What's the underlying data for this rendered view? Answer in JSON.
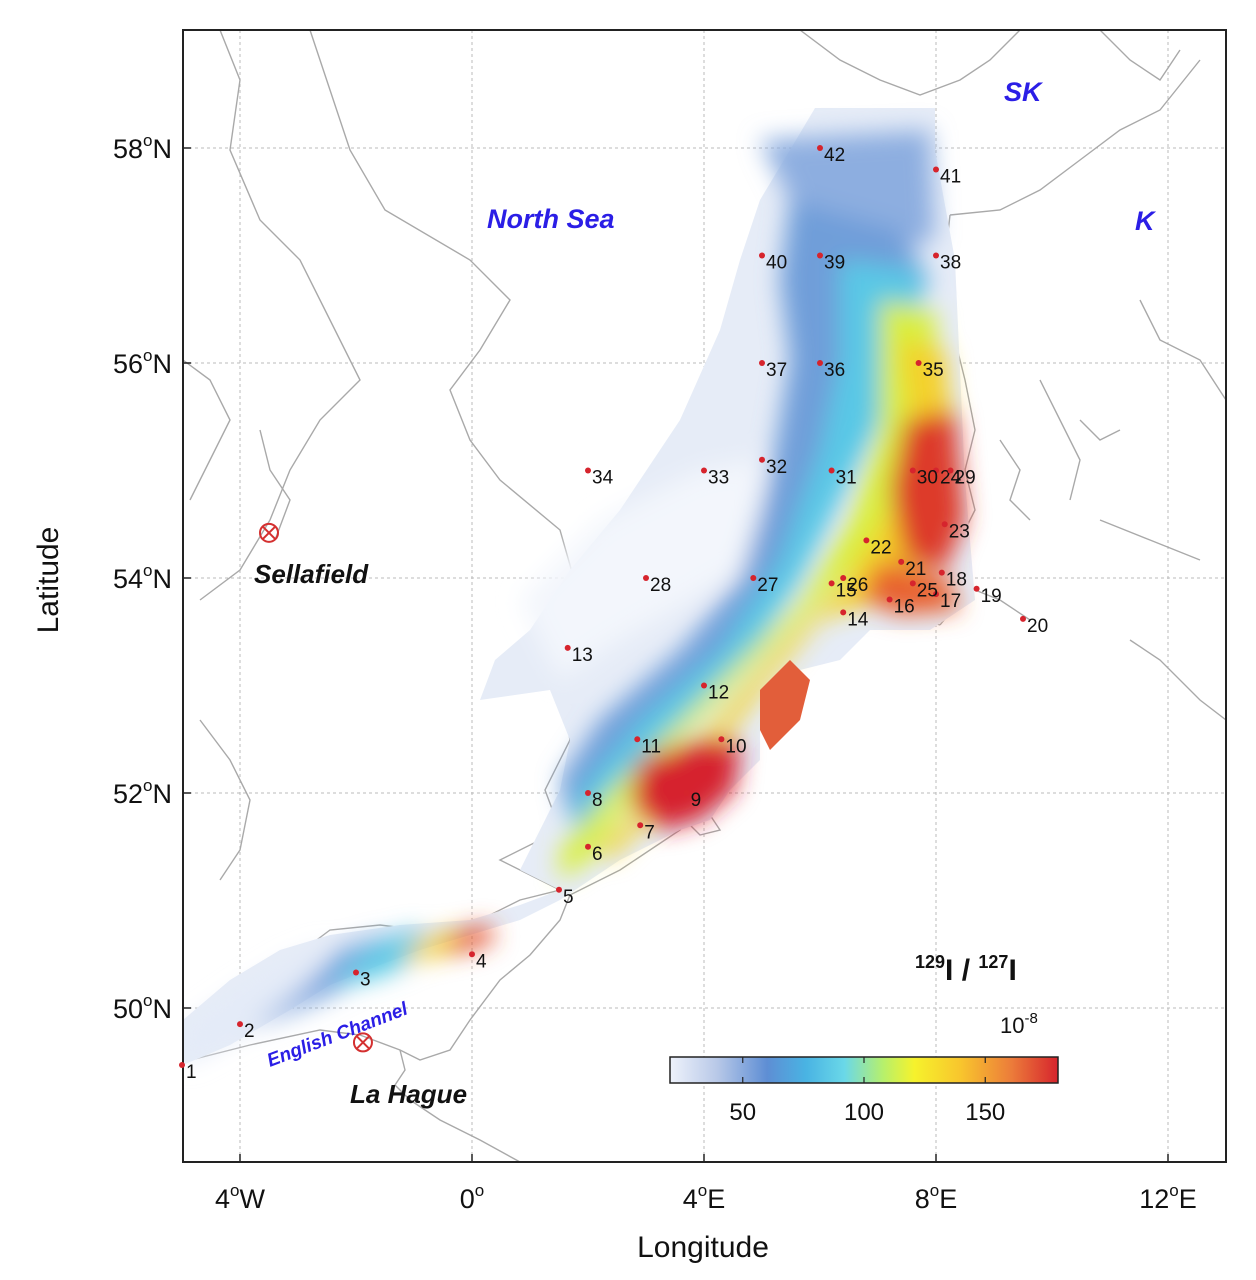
{
  "axes": {
    "xlabel": "Longitude",
    "ylabel": "Latitude",
    "x_ticks": [
      {
        "value": -4,
        "deg": "4",
        "sup": "o",
        "hemi": "W"
      },
      {
        "value": 0,
        "deg": "0",
        "sup": "o",
        "hemi": ""
      },
      {
        "value": 4,
        "deg": "4",
        "sup": "o",
        "hemi": "E"
      },
      {
        "value": 8,
        "deg": "8",
        "sup": "o",
        "hemi": "E"
      },
      {
        "value": 12,
        "deg": "12",
        "sup": "o",
        "hemi": "E"
      }
    ],
    "y_ticks": [
      {
        "value": 50,
        "deg": "50",
        "sup": "o",
        "hemi": "N"
      },
      {
        "value": 52,
        "deg": "52",
        "sup": "o",
        "hemi": "N"
      },
      {
        "value": 54,
        "deg": "54",
        "sup": "o",
        "hemi": "N"
      },
      {
        "value": 56,
        "deg": "56",
        "sup": "o",
        "hemi": "N"
      },
      {
        "value": 58,
        "deg": "58",
        "sup": "o",
        "hemi": "N"
      }
    ],
    "xlim": [
      -5,
      13
    ],
    "ylim": [
      48.7,
      58.55
    ],
    "grid": true
  },
  "labels": {
    "north_sea": "North Sea",
    "sk": "SK",
    "k": "K",
    "english_channel": "English Channel",
    "sellafield": "Sellafield",
    "la_hague": "La Hague"
  },
  "sources": [
    {
      "name": "Sellafield",
      "lon": -3.5,
      "lat": 54.42
    },
    {
      "name": "La Hague",
      "lon": -1.88,
      "lat": 49.68
    }
  ],
  "stations": [
    {
      "id": "1",
      "lon": -5.0,
      "lat": 49.47
    },
    {
      "id": "2",
      "lon": -4.0,
      "lat": 49.85
    },
    {
      "id": "3",
      "lon": -2.0,
      "lat": 50.33
    },
    {
      "id": "4",
      "lon": 0.0,
      "lat": 50.5
    },
    {
      "id": "5",
      "lon": 1.5,
      "lat": 51.1
    },
    {
      "id": "6",
      "lon": 2.0,
      "lat": 51.5
    },
    {
      "id": "7",
      "lon": 2.9,
      "lat": 51.7
    },
    {
      "id": "8",
      "lon": 2.0,
      "lat": 52.0
    },
    {
      "id": "9",
      "lon": 3.7,
      "lat": 52.0
    },
    {
      "id": "10",
      "lon": 4.3,
      "lat": 52.5
    },
    {
      "id": "11",
      "lon": 2.85,
      "lat": 52.5
    },
    {
      "id": "12",
      "lon": 4.0,
      "lat": 53.0
    },
    {
      "id": "13",
      "lon": 1.65,
      "lat": 53.35
    },
    {
      "id": "14",
      "lon": 6.4,
      "lat": 53.68
    },
    {
      "id": "15",
      "lon": 6.2,
      "lat": 53.95
    },
    {
      "id": "16",
      "lon": 7.2,
      "lat": 53.8
    },
    {
      "id": "17",
      "lon": 8.0,
      "lat": 53.85
    },
    {
      "id": "18",
      "lon": 8.1,
      "lat": 54.05
    },
    {
      "id": "19",
      "lon": 8.7,
      "lat": 53.9
    },
    {
      "id": "20",
      "lon": 9.5,
      "lat": 53.62
    },
    {
      "id": "21",
      "lon": 7.4,
      "lat": 54.15
    },
    {
      "id": "22",
      "lon": 6.8,
      "lat": 54.35
    },
    {
      "id": "23",
      "lon": 8.15,
      "lat": 54.5
    },
    {
      "id": "24",
      "lon": 8.0,
      "lat": 55.0
    },
    {
      "id": "25",
      "lon": 7.6,
      "lat": 53.95
    },
    {
      "id": "26",
      "lon": 6.4,
      "lat": 54.0
    },
    {
      "id": "27",
      "lon": 4.85,
      "lat": 54.0
    },
    {
      "id": "28",
      "lon": 3.0,
      "lat": 54.0
    },
    {
      "id": "29",
      "lon": 8.25,
      "lat": 55.0
    },
    {
      "id": "30",
      "lon": 7.6,
      "lat": 55.0
    },
    {
      "id": "31",
      "lon": 6.2,
      "lat": 55.0
    },
    {
      "id": "32",
      "lon": 5.0,
      "lat": 55.1
    },
    {
      "id": "33",
      "lon": 4.0,
      "lat": 55.0
    },
    {
      "id": "34",
      "lon": 2.0,
      "lat": 55.0
    },
    {
      "id": "35",
      "lon": 7.7,
      "lat": 56.0
    },
    {
      "id": "36",
      "lon": 6.0,
      "lat": 56.0
    },
    {
      "id": "37",
      "lon": 5.0,
      "lat": 56.0
    },
    {
      "id": "38",
      "lon": 8.0,
      "lat": 57.0
    },
    {
      "id": "39",
      "lon": 6.0,
      "lat": 57.0
    },
    {
      "id": "40",
      "lon": 5.0,
      "lat": 57.0
    },
    {
      "id": "41",
      "lon": 8.0,
      "lat": 57.8
    },
    {
      "id": "42",
      "lon": 6.0,
      "lat": 58.0
    }
  ],
  "colorbar": {
    "title_base1": "129",
    "title_sym1": "I",
    "title_sep": " / ",
    "title_base2": "127",
    "title_sym2": "I",
    "unit_base": "10",
    "unit_exp": "-8",
    "min": 20,
    "max": 180,
    "ticks": [
      {
        "value": 50,
        "label": "50"
      },
      {
        "value": 100,
        "label": "100"
      },
      {
        "value": 150,
        "label": "150"
      }
    ],
    "colors": [
      "#eef2fb",
      "#b9c9e8",
      "#5e8ed4",
      "#49b3e3",
      "#6ad8e8",
      "#b7f06b",
      "#f6f22c",
      "#f8c52d",
      "#ec7c3a",
      "#d6242d"
    ]
  }
}
